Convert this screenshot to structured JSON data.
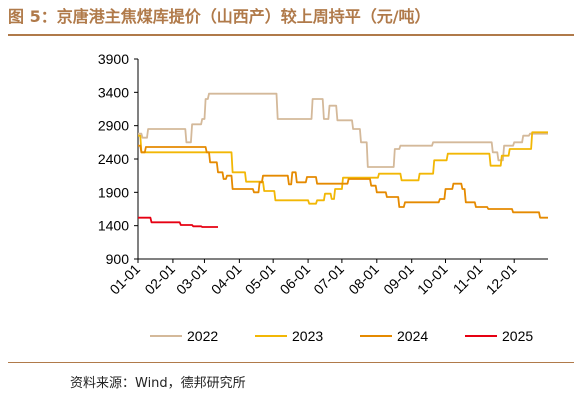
{
  "figure": {
    "title": "图 5：京唐港主焦煤库提价（山西产）较上周持平（元/吨）",
    "source": "资料来源：Wind，德邦研究所"
  },
  "colors": {
    "title": "#b07a4a",
    "s2022": "#d4b99a",
    "s2023": "#f2b705",
    "s2024": "#e58a00",
    "s2025": "#e60012"
  },
  "chart_data": {
    "type": "line",
    "title": "京唐港主焦煤库提价（山西产）较上周持平（元/吨）",
    "ylim": [
      900,
      3900
    ],
    "yticks": [
      900,
      1400,
      1900,
      2400,
      2900,
      3400,
      3900
    ],
    "xticks": [
      "01-01",
      "02-01",
      "03-01",
      "04-01",
      "05-01",
      "06-01",
      "07-01",
      "08-01",
      "09-01",
      "10-01",
      "11-01",
      "12-01"
    ],
    "x_unit": "day of year (1 = 01-01)",
    "grid": false,
    "legend": "bottom",
    "series": [
      {
        "name": "2022",
        "points": [
          [
            1,
            2780
          ],
          [
            4,
            2780
          ],
          [
            5,
            2720
          ],
          [
            9,
            2720
          ],
          [
            10,
            2850
          ],
          [
            43,
            2850
          ],
          [
            44,
            2650
          ],
          [
            48,
            2650
          ],
          [
            49,
            2920
          ],
          [
            57,
            2920
          ],
          [
            58,
            3000
          ],
          [
            60,
            3000
          ],
          [
            61,
            3300
          ],
          [
            63,
            3300
          ],
          [
            64,
            3380
          ],
          [
            124,
            3380
          ],
          [
            125,
            3000
          ],
          [
            155,
            3000
          ],
          [
            156,
            3300
          ],
          [
            165,
            3300
          ],
          [
            166,
            3000
          ],
          [
            170,
            3000
          ],
          [
            171,
            3200
          ],
          [
            177,
            3200
          ],
          [
            178,
            2980
          ],
          [
            191,
            2980
          ],
          [
            192,
            2850
          ],
          [
            198,
            2850
          ],
          [
            199,
            2650
          ],
          [
            204,
            2650
          ],
          [
            205,
            2280
          ],
          [
            228,
            2280
          ],
          [
            229,
            2550
          ],
          [
            233,
            2550
          ],
          [
            234,
            2600
          ],
          [
            262,
            2600
          ],
          [
            263,
            2650
          ],
          [
            315,
            2650
          ],
          [
            316,
            2500
          ],
          [
            320,
            2500
          ],
          [
            321,
            2380
          ],
          [
            325,
            2380
          ],
          [
            326,
            2600
          ],
          [
            334,
            2600
          ],
          [
            335,
            2650
          ],
          [
            342,
            2650
          ],
          [
            343,
            2750
          ],
          [
            348,
            2750
          ],
          [
            349,
            2780
          ],
          [
            365,
            2780
          ]
        ]
      },
      {
        "name": "2023",
        "points": [
          [
            1,
            2750
          ],
          [
            3,
            2750
          ],
          [
            4,
            2500
          ],
          [
            84,
            2500
          ],
          [
            85,
            2200
          ],
          [
            96,
            2200
          ],
          [
            97,
            2060
          ],
          [
            112,
            2060
          ],
          [
            113,
            1920
          ],
          [
            122,
            1920
          ],
          [
            123,
            1780
          ],
          [
            152,
            1780
          ],
          [
            153,
            1730
          ],
          [
            159,
            1730
          ],
          [
            160,
            1780
          ],
          [
            166,
            1780
          ],
          [
            167,
            1880
          ],
          [
            172,
            1880
          ],
          [
            173,
            1800
          ],
          [
            175,
            1800
          ],
          [
            176,
            1950
          ],
          [
            182,
            1950
          ],
          [
            183,
            2120
          ],
          [
            214,
            2120
          ],
          [
            215,
            2180
          ],
          [
            234,
            2180
          ],
          [
            235,
            2080
          ],
          [
            250,
            2080
          ],
          [
            251,
            2180
          ],
          [
            263,
            2180
          ],
          [
            264,
            2380
          ],
          [
            275,
            2380
          ],
          [
            276,
            2480
          ],
          [
            313,
            2480
          ],
          [
            314,
            2300
          ],
          [
            323,
            2300
          ],
          [
            324,
            2450
          ],
          [
            330,
            2450
          ],
          [
            331,
            2550
          ],
          [
            350,
            2550
          ],
          [
            351,
            2800
          ],
          [
            365,
            2800
          ]
        ]
      },
      {
        "name": "2024",
        "points": [
          [
            1,
            2600
          ],
          [
            3,
            2600
          ],
          [
            4,
            2500
          ],
          [
            7,
            2500
          ],
          [
            8,
            2580
          ],
          [
            61,
            2580
          ],
          [
            62,
            2500
          ],
          [
            64,
            2500
          ],
          [
            65,
            2350
          ],
          [
            71,
            2350
          ],
          [
            72,
            2200
          ],
          [
            76,
            2200
          ],
          [
            77,
            2100
          ],
          [
            79,
            2100
          ],
          [
            80,
            2150
          ],
          [
            84,
            2150
          ],
          [
            85,
            1950
          ],
          [
            103,
            1950
          ],
          [
            104,
            1900
          ],
          [
            108,
            1900
          ],
          [
            109,
            2050
          ],
          [
            111,
            2050
          ],
          [
            112,
            2150
          ],
          [
            134,
            2150
          ],
          [
            135,
            2020
          ],
          [
            137,
            2020
          ],
          [
            138,
            2200
          ],
          [
            141,
            2200
          ],
          [
            142,
            2050
          ],
          [
            150,
            2050
          ],
          [
            151,
            2130
          ],
          [
            159,
            2130
          ],
          [
            160,
            2030
          ],
          [
            187,
            2030
          ],
          [
            188,
            2100
          ],
          [
            207,
            2100
          ],
          [
            208,
            2000
          ],
          [
            212,
            2000
          ],
          [
            213,
            1900
          ],
          [
            221,
            1900
          ],
          [
            222,
            1830
          ],
          [
            232,
            1830
          ],
          [
            233,
            1680
          ],
          [
            237,
            1680
          ],
          [
            238,
            1750
          ],
          [
            268,
            1750
          ],
          [
            269,
            1800
          ],
          [
            273,
            1800
          ],
          [
            274,
            1950
          ],
          [
            280,
            1950
          ],
          [
            281,
            2030
          ],
          [
            288,
            2030
          ],
          [
            289,
            1950
          ],
          [
            291,
            1950
          ],
          [
            292,
            1750
          ],
          [
            300,
            1750
          ],
          [
            301,
            1680
          ],
          [
            311,
            1680
          ],
          [
            312,
            1650
          ],
          [
            333,
            1650
          ],
          [
            334,
            1600
          ],
          [
            357,
            1600
          ],
          [
            358,
            1520
          ],
          [
            365,
            1520
          ]
        ]
      },
      {
        "name": "2025",
        "points": [
          [
            1,
            1520
          ],
          [
            12,
            1520
          ],
          [
            13,
            1450
          ],
          [
            38,
            1450
          ],
          [
            39,
            1410
          ],
          [
            49,
            1410
          ],
          [
            50,
            1390
          ],
          [
            57,
            1390
          ],
          [
            58,
            1380
          ],
          [
            72,
            1380
          ]
        ]
      }
    ]
  }
}
